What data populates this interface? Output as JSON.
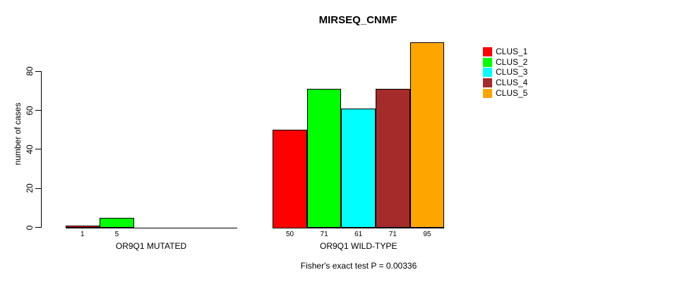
{
  "chart_data": {
    "type": "bar",
    "title": "MIRSEQ_CNMF",
    "ylabel": "number of cases",
    "yticks": [
      0,
      20,
      40,
      60,
      80
    ],
    "ylim": [
      0,
      95.5
    ],
    "grid": false,
    "legend_position": "top-right",
    "colors": [
      "#FF0000",
      "#00FF00",
      "#00FFFF",
      "#A52A2A",
      "#FFA500"
    ],
    "legend": [
      "CLUS_1",
      "CLUS_2",
      "CLUS_3",
      "CLUS_4",
      "CLUS_5"
    ],
    "groups": [
      {
        "label": "OR9Q1 MUTATED",
        "values": [
          1,
          5,
          0,
          0,
          0
        ],
        "bar_labels": [
          "1",
          "5",
          "",
          "",
          ""
        ]
      },
      {
        "label": "OR9Q1 WILD-TYPE",
        "values": [
          50,
          71,
          61,
          71,
          95
        ],
        "bar_labels": [
          "50",
          "71",
          "61",
          "71",
          "95"
        ]
      }
    ],
    "footnote": "Fisher's exact test P = 0.00336"
  }
}
